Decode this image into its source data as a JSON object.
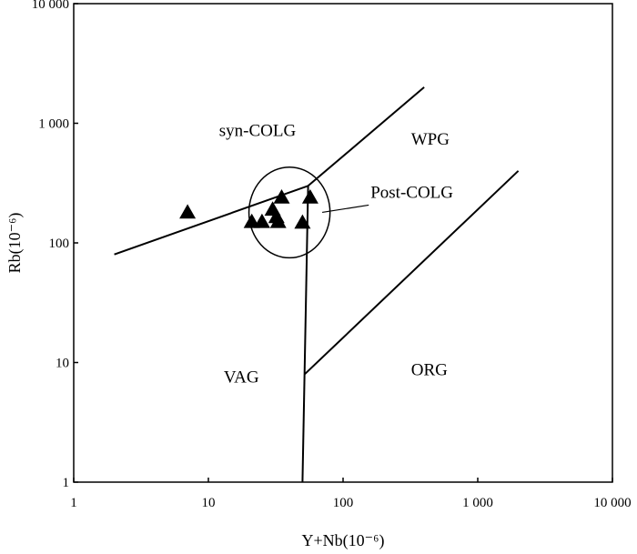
{
  "chart_data": {
    "type": "scatter",
    "title": "",
    "xlabel": "Y+Nb(10⁻⁶)",
    "ylabel": "Rb(10⁻⁶)",
    "x_scale": "log",
    "y_scale": "log",
    "xlim": [
      1,
      10000
    ],
    "ylim": [
      1,
      10000
    ],
    "grid": false,
    "x_ticks": [
      {
        "value": 1,
        "label": "1"
      },
      {
        "value": 10,
        "label": "10"
      },
      {
        "value": 100,
        "label": "100"
      },
      {
        "value": 1000,
        "label": "1 000"
      },
      {
        "value": 10000,
        "label": "10 000"
      }
    ],
    "y_ticks": [
      {
        "value": 1,
        "label": "1"
      },
      {
        "value": 10,
        "label": "10"
      },
      {
        "value": 100,
        "label": "100"
      },
      {
        "value": 1000,
        "label": "1 000"
      },
      {
        "value": 10000,
        "label": "10 000"
      }
    ],
    "regions": [
      {
        "name": "syn-COLG",
        "x": 12,
        "y": 780
      },
      {
        "name": "WPG",
        "x": 320,
        "y": 660
      },
      {
        "name": "VAG",
        "x": 13,
        "y": 6.8
      },
      {
        "name": "ORG",
        "x": 320,
        "y": 7.8
      }
    ],
    "boundaries": [
      {
        "name": "syn-COLG / VAG",
        "points": [
          [
            2,
            80
          ],
          [
            55,
            300
          ]
        ]
      },
      {
        "name": "syn-COLG / WPG",
        "points": [
          [
            55,
            300
          ],
          [
            400,
            2000
          ]
        ]
      },
      {
        "name": "VAG / WPG",
        "points": [
          [
            55,
            300
          ],
          [
            50,
            1
          ]
        ]
      },
      {
        "name": "WPG / ORG",
        "points": [
          [
            52,
            8
          ],
          [
            2000,
            400
          ]
        ]
      }
    ],
    "post_colg_field": {
      "label": "Post-COLG",
      "center": [
        41,
        180
      ],
      "x_range": [
        20,
        80
      ],
      "y_range": [
        75,
        430
      ],
      "label_x": 160,
      "label_y": 230,
      "pointer_end": [
        70,
        200
      ]
    },
    "points": {
      "marker": "filled-triangle",
      "x": [
        7,
        21,
        25,
        30,
        32,
        33,
        35,
        50,
        57
      ],
      "y": [
        180,
        150,
        150,
        190,
        165,
        150,
        240,
        148,
        240
      ]
    }
  }
}
